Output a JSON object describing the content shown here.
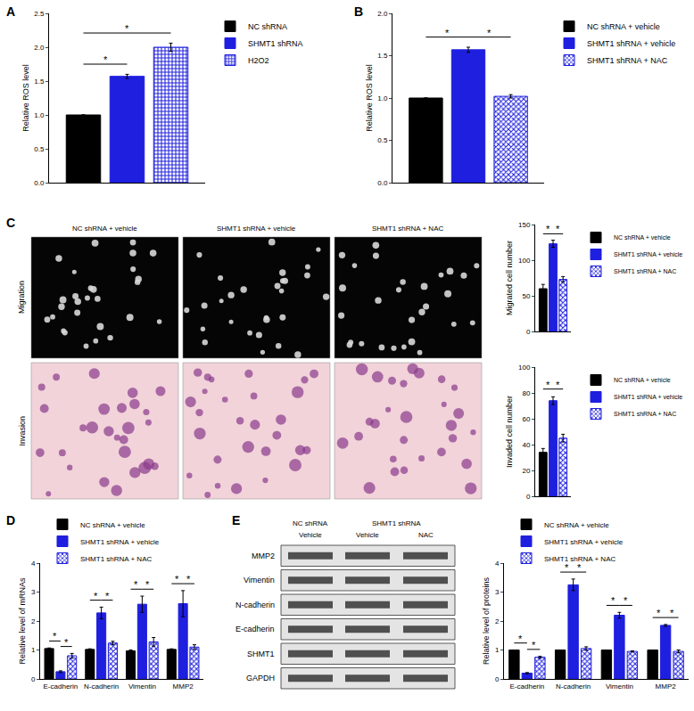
{
  "chart_data": [
    {
      "panel": "A",
      "type": "bar",
      "categories": [
        null
      ],
      "ylabel": "Relative ROS level",
      "ylim": [
        0,
        2.5
      ],
      "yticks": [
        {
          "value": 0,
          "label": "0.0"
        },
        {
          "value": 0.5,
          "label": "0.5"
        },
        {
          "value": 1,
          "label": "1.0"
        },
        {
          "value": 1.5,
          "label": "1.5"
        },
        {
          "value": 2,
          "label": "2.0"
        },
        {
          "value": 2.5,
          "label": "2.5"
        }
      ],
      "grid": false,
      "legend": "right",
      "tick_labels": "y",
      "series": [
        {
          "name": "NC shRNA",
          "color": "#000000",
          "values": [
            1.0
          ],
          "errors": [
            0
          ]
        },
        {
          "name": "SHMT1 shRNA",
          "color": "#1f1fdf",
          "values": [
            1.57
          ],
          "errors": [
            0.03
          ]
        },
        {
          "name": "H2O2",
          "color": "#1f1fdf",
          "marker": "checkered",
          "values": [
            2.0
          ],
          "errors": [
            0.06
          ]
        }
      ],
      "comparisons": [
        {
          "pair": [
            0,
            1
          ],
          "text": "*"
        },
        {
          "pair": [
            0,
            2
          ],
          "text": "*"
        }
      ]
    },
    {
      "panel": "B",
      "type": "bar",
      "categories": [
        null
      ],
      "ylabel": "Relative ROS level",
      "ylim": [
        0,
        2
      ],
      "yticks": [
        {
          "value": 0,
          "label": "0.0"
        },
        {
          "value": 0.5,
          "label": "0.5"
        },
        {
          "value": 1,
          "label": "1.0"
        },
        {
          "value": 1.5,
          "label": "1.5"
        },
        {
          "value": 2,
          "label": "2.0"
        }
      ],
      "grid": false,
      "legend": "right",
      "tick_labels": "y",
      "series": [
        {
          "name": "NC shRNA + vehicle",
          "color": "#000000",
          "values": [
            1.0
          ],
          "errors": [
            0
          ]
        },
        {
          "name": "SHMT1 shRNA + vehicle",
          "color": "#1f1fdf",
          "values": [
            1.57
          ],
          "errors": [
            0.03
          ]
        },
        {
          "name": "SHMT1 shRNA + NAC",
          "color": "#1f1fdf",
          "marker": "wavy",
          "values": [
            1.02
          ],
          "errors": [
            0.02
          ]
        }
      ],
      "comparisons": [
        {
          "pair": [
            0,
            1
          ],
          "text": "*"
        },
        {
          "pair": [
            1,
            2
          ],
          "text": "*"
        }
      ]
    },
    {
      "type": "bar",
      "categories": [
        null
      ],
      "ylabel": "Migrated cell number",
      "ylim": [
        0,
        150
      ],
      "yticks": [
        0,
        50,
        100,
        150
      ],
      "grid": false,
      "legend": "right",
      "tick_labels": "y",
      "series": [
        {
          "name": "NC shRNA + vehicle",
          "color": "#000000",
          "values": [
            60
          ],
          "errors": [
            6
          ]
        },
        {
          "name": "SHMT1 shRNA + vehicle",
          "color": "#1f1fdf",
          "values": [
            123
          ],
          "errors": [
            5
          ]
        },
        {
          "name": "SHMT1 shRNA + NAC",
          "color": "#1f1fdf",
          "marker": "wavy",
          "values": [
            73
          ],
          "errors": [
            4
          ]
        }
      ],
      "comparisons": [
        {
          "pair": [
            0,
            1
          ],
          "text": "*"
        },
        {
          "pair": [
            1,
            2
          ],
          "text": "*"
        }
      ]
    },
    {
      "type": "bar",
      "categories": [
        null
      ],
      "ylabel": "Invaded cell number",
      "ylim": [
        0,
        100
      ],
      "yticks": [
        0,
        20,
        40,
        60,
        80,
        100
      ],
      "grid": false,
      "legend": "right",
      "tick_labels": "y",
      "series": [
        {
          "name": "NC shRNA + vehicle",
          "color": "#000000",
          "values": [
            34
          ],
          "errors": [
            3
          ]
        },
        {
          "name": "SHMT1 shRNA + vehicle",
          "color": "#1f1fdf",
          "values": [
            74
          ],
          "errors": [
            3
          ]
        },
        {
          "name": "SHMT1 shRNA + NAC",
          "color": "#1f1fdf",
          "marker": "wavy",
          "values": [
            45
          ],
          "errors": [
            3
          ]
        }
      ],
      "comparisons": [
        {
          "pair": [
            0,
            1
          ],
          "text": "*"
        },
        {
          "pair": [
            1,
            2
          ],
          "text": "*"
        }
      ]
    },
    {
      "panel": "D",
      "type": "bar",
      "categories": [
        "E-cadherin",
        "N-cadherin",
        "Vimentin",
        "MMP2"
      ],
      "ylabel": "Relative level of mRNAs",
      "ylim": [
        0,
        4
      ],
      "yticks": [
        0,
        1,
        2,
        3,
        4
      ],
      "grid": false,
      "legend": "top",
      "series": [
        {
          "name": "NC shRNA + vehicle",
          "color": "#000000",
          "values": [
            1.05,
            1.02,
            0.97,
            1.02
          ],
          "errors": [
            0.02,
            0.02,
            0.03,
            0.02
          ]
        },
        {
          "name": "SHMT1 shRNA + vehicle",
          "color": "#1f1fdf",
          "values": [
            0.25,
            2.28,
            2.58,
            2.6
          ],
          "errors": [
            0.03,
            0.2,
            0.28,
            0.45
          ]
        },
        {
          "name": "SHMT1 shRNA + NAC",
          "color": "#1f1fdf",
          "marker": "wavy",
          "values": [
            0.8,
            1.24,
            1.28,
            1.1
          ],
          "errors": [
            0.08,
            0.06,
            0.15,
            0.08
          ]
        }
      ],
      "comparisons": [
        {
          "pair": [
            0,
            1
          ],
          "text": "*"
        },
        {
          "pair": [
            1,
            2
          ],
          "text": "*"
        }
      ]
    },
    {
      "type": "bar",
      "categories": [
        "E-cadherin",
        "N-cadherin",
        "Vimentin",
        "MMP2"
      ],
      "ylabel": "Relative level of proteins",
      "ylim": [
        0,
        4
      ],
      "yticks": [
        0,
        1,
        2,
        3,
        4
      ],
      "grid": false,
      "legend": "top",
      "series": [
        {
          "name": "NC shRNA + vehicle",
          "color": "#000000",
          "values": [
            1.0,
            1.0,
            1.0,
            1.0
          ],
          "errors": [
            0,
            0,
            0,
            0
          ]
        },
        {
          "name": "SHMT1 shRNA + vehicle",
          "color": "#1f1fdf",
          "values": [
            0.2,
            3.25,
            2.2,
            1.85
          ],
          "errors": [
            0.02,
            0.2,
            0.1,
            0.03
          ]
        },
        {
          "name": "SHMT1 shRNA + NAC",
          "color": "#1f1fdf",
          "marker": "wavy",
          "values": [
            0.75,
            1.05,
            0.95,
            0.95
          ],
          "errors": [
            0.03,
            0.06,
            0.02,
            0.05
          ]
        }
      ],
      "comparisons": [
        {
          "pair": [
            0,
            1
          ],
          "text": "*"
        },
        {
          "pair": [
            1,
            2
          ],
          "text": "*"
        }
      ]
    }
  ],
  "images": {
    "panel": "C",
    "rows": [
      "Migration",
      "Invasion"
    ],
    "columns": [
      "NC shRNA + vehicle",
      "SHMT1 shRNA + vehicle",
      "SHMT1 shRNA + NAC"
    ]
  },
  "blot": {
    "panel": "E",
    "groups": [
      {
        "label": "NC shRNA",
        "lanes": [
          "Vehicle"
        ]
      },
      {
        "label": "SHMT1 shRNA",
        "lanes": [
          "Vehicle",
          "NAC"
        ]
      }
    ],
    "rows": [
      "MMP2",
      "Vimentin",
      "N-cadherin",
      "E-cadherin",
      "SHMT1",
      "GAPDH"
    ]
  }
}
